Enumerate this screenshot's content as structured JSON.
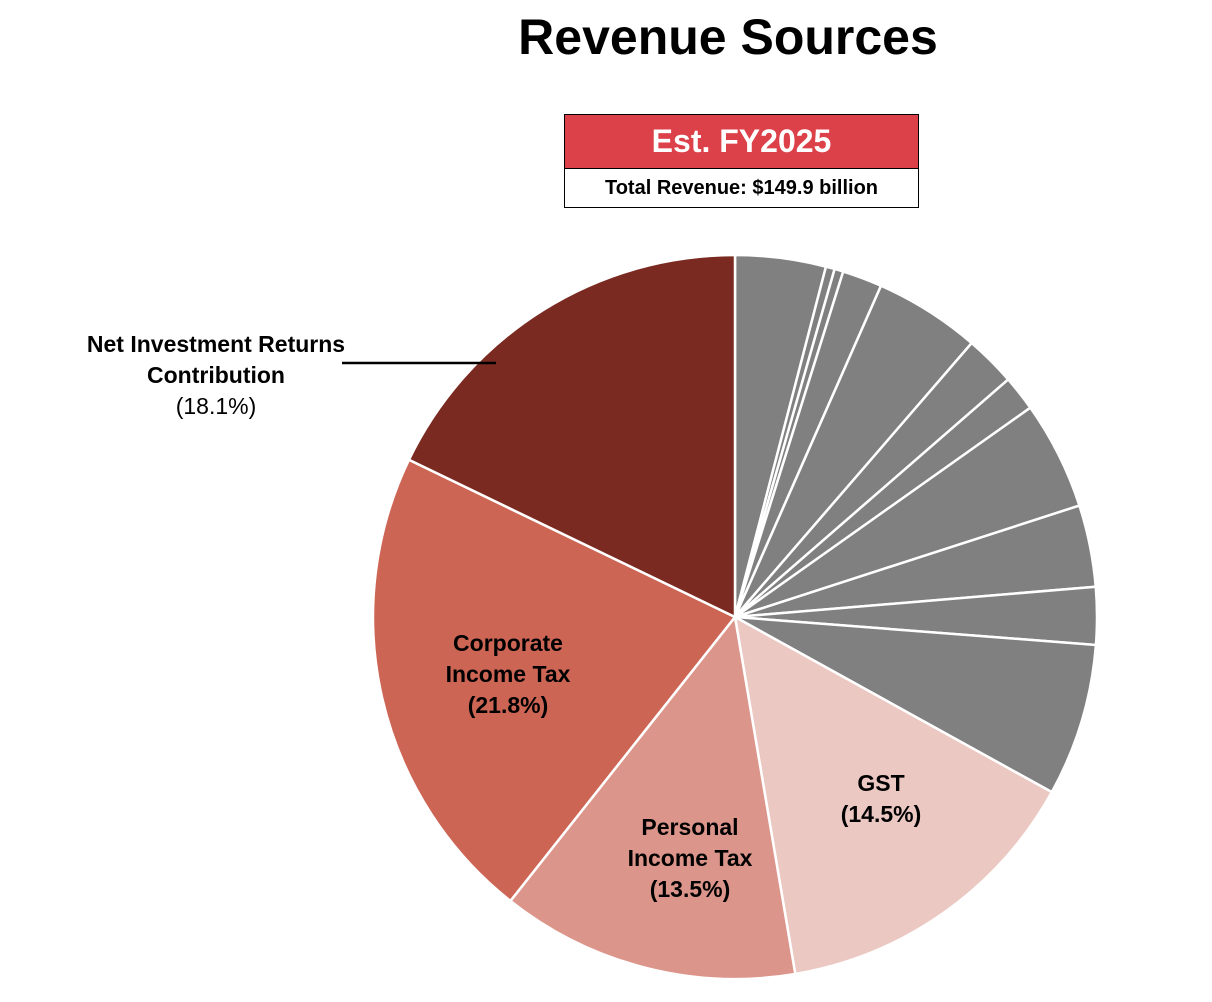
{
  "title": "Revenue Sources",
  "estimate_box": {
    "header": "Est. FY2025",
    "total": "Total Revenue: $149.9 billion"
  },
  "colors": {
    "net_investment": "#7a2a20",
    "corporate": "#cd6555",
    "personal": "#dc958a",
    "gst": "#ecc8c2",
    "other": "#808080",
    "header_red": "#dc4049"
  },
  "chart_data": {
    "type": "pie",
    "title": "Revenue Sources",
    "start_angle_deg": 0,
    "direction": "clockwise",
    "slices": [
      {
        "name": "",
        "value": 4.1,
        "color": "#808080"
      },
      {
        "name": "",
        "value": 0.4,
        "color": "#808080"
      },
      {
        "name": "",
        "value": 0.4,
        "color": "#808080"
      },
      {
        "name": "",
        "value": 1.8,
        "color": "#808080"
      },
      {
        "name": "",
        "value": 4.8,
        "color": "#808080"
      },
      {
        "name": "",
        "value": 2.3,
        "color": "#808080"
      },
      {
        "name": "",
        "value": 1.6,
        "color": "#808080"
      },
      {
        "name": "",
        "value": 4.9,
        "color": "#808080"
      },
      {
        "name": "",
        "value": 3.7,
        "color": "#808080"
      },
      {
        "name": "",
        "value": 2.6,
        "color": "#808080"
      },
      {
        "name": "",
        "value": 6.9,
        "color": "#808080"
      },
      {
        "name": "GST",
        "value": 14.5,
        "label": "(14.5%)",
        "color": "#ecc8c2"
      },
      {
        "name": "Personal\nIncome Tax",
        "value": 13.5,
        "label": "(13.5%)",
        "color": "#dc958a"
      },
      {
        "name": "Corporate\nIncome Tax",
        "value": 21.8,
        "label": "(21.8%)",
        "color": "#cd6555"
      },
      {
        "name": "Net Investment Returns\nContribution",
        "value": 18.1,
        "label": "(18.1%)",
        "color": "#7a2a20"
      }
    ]
  }
}
